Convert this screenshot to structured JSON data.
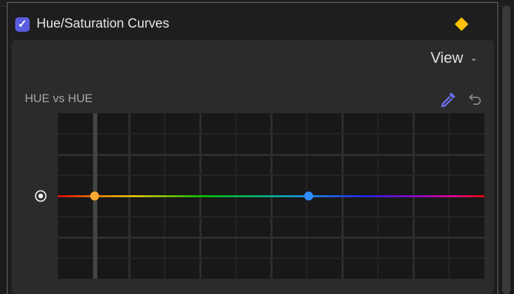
{
  "effect": {
    "title": "Hue/Saturation Curves",
    "enabled": true,
    "keyframe_color": "#ffc20a",
    "checkbox_color": "#5a5ce0"
  },
  "view_menu": {
    "label": "View",
    "icon": "chevron-down-icon"
  },
  "curve": {
    "label": "HUE vs HUE",
    "tools": {
      "eyedropper": "eyedropper-icon",
      "reset": "undo-icon"
    },
    "points": [
      {
        "color": "#ffa733",
        "position_fraction": 0.086
      },
      {
        "color": "#2f8cff",
        "position_fraction": 0.588
      }
    ]
  }
}
